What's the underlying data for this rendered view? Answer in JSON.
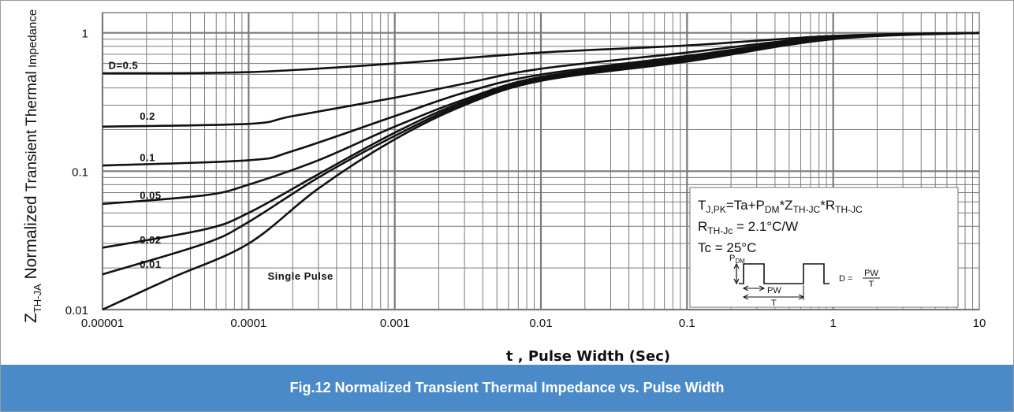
{
  "chart_data": {
    "type": "line",
    "title": "Fig.12 Normalized Transient Thermal Impedance vs. Pulse Width",
    "xlabel": "t , Pulse Width (Sec)",
    "ylabel": {
      "symbol": "Z",
      "subscript": "TH-JA",
      "main": "Normalized",
      "rest": "Transient Thermal",
      "small": "Impedance"
    },
    "x_scale": "log",
    "y_scale": "log",
    "xlim": [
      1e-05,
      10
    ],
    "ylim": [
      0.01,
      1.4
    ],
    "x_ticks": [
      {
        "v": 1e-05,
        "label": "0.00001"
      },
      {
        "v": 0.0001,
        "label": "0.0001"
      },
      {
        "v": 0.001,
        "label": "0.001"
      },
      {
        "v": 0.01,
        "label": "0.01"
      },
      {
        "v": 0.1,
        "label": "0.1"
      },
      {
        "v": 1,
        "label": "1"
      },
      {
        "v": 10,
        "label": "10"
      }
    ],
    "y_ticks": [
      {
        "v": 0.01,
        "label": "0.01"
      },
      {
        "v": 0.1,
        "label": "0.1"
      },
      {
        "v": 1,
        "label": "1"
      }
    ],
    "grid": true,
    "series": [
      {
        "name": "D=0.5",
        "x": [
          1e-05,
          0.0001,
          0.001,
          0.01,
          0.1,
          1,
          10
        ],
        "y": [
          0.51,
          0.52,
          0.6,
          0.72,
          0.81,
          0.95,
          1.0
        ]
      },
      {
        "name": "0.2",
        "x": [
          1e-05,
          0.0001,
          0.0002,
          0.001,
          0.003,
          0.01,
          0.1,
          1,
          10
        ],
        "y": [
          0.21,
          0.22,
          0.25,
          0.34,
          0.43,
          0.55,
          0.72,
          0.94,
          1.0
        ]
      },
      {
        "name": "0.1",
        "x": [
          1e-05,
          0.0001,
          0.0002,
          0.001,
          0.003,
          0.01,
          0.1,
          1,
          10
        ],
        "y": [
          0.11,
          0.12,
          0.14,
          0.25,
          0.37,
          0.5,
          0.68,
          0.93,
          1.0
        ]
      },
      {
        "name": "0.05",
        "x": [
          1e-05,
          5e-05,
          0.0001,
          0.0003,
          0.001,
          0.003,
          0.01,
          0.1,
          1,
          10
        ],
        "y": [
          0.058,
          0.067,
          0.08,
          0.12,
          0.21,
          0.33,
          0.48,
          0.66,
          0.92,
          1.0
        ]
      },
      {
        "name": "0.02",
        "x": [
          1e-05,
          5e-05,
          0.0001,
          0.0003,
          0.001,
          0.003,
          0.01,
          0.1,
          1,
          10
        ],
        "y": [
          0.028,
          0.038,
          0.05,
          0.095,
          0.19,
          0.32,
          0.47,
          0.64,
          0.92,
          1.0
        ]
      },
      {
        "name": "0.01",
        "x": [
          1e-05,
          5e-05,
          0.0001,
          0.0003,
          0.001,
          0.003,
          0.01,
          0.1,
          1,
          10
        ],
        "y": [
          0.018,
          0.03,
          0.043,
          0.09,
          0.18,
          0.31,
          0.46,
          0.63,
          0.91,
          1.0
        ]
      },
      {
        "name": "Single Pulse",
        "x": [
          1e-05,
          3e-05,
          0.0001,
          0.0003,
          0.001,
          0.003,
          0.01,
          0.1,
          1,
          10
        ],
        "y": [
          0.01,
          0.017,
          0.03,
          0.075,
          0.17,
          0.3,
          0.45,
          0.62,
          0.9,
          1.0
        ]
      }
    ],
    "series_labels": [
      {
        "text": "D=0.5",
        "x": 1.1e-05,
        "y": 0.55
      },
      {
        "text": "0.2",
        "x": 1.8e-05,
        "y": 0.235
      },
      {
        "text": "0.1",
        "x": 1.8e-05,
        "y": 0.118
      },
      {
        "text": "0.05",
        "x": 1.8e-05,
        "y": 0.063
      },
      {
        "text": "0.02",
        "x": 1.8e-05,
        "y": 0.03
      },
      {
        "text": "0.01",
        "x": 1.8e-05,
        "y": 0.02
      },
      {
        "text": "Single Pulse",
        "x": 0.000135,
        "y": 0.0165
      }
    ],
    "annotation": {
      "line1": {
        "a": "T",
        "a_sub": "J,PK",
        "b": "=Ta+P",
        "b_sub": "DM",
        "c": "*Z",
        "c_sub": "TH-JC",
        "d": "*R",
        "d_sub": "TH-JC"
      },
      "line2": {
        "a": "R",
        "a_sub": "TH-Jc",
        "b": " = 2.1°C/W"
      },
      "line3": "Tc = 25°C",
      "pulse": {
        "pdm": "P",
        "pdm_sub": "DM",
        "pw": "PW",
        "t": "T",
        "d_eq": "D =",
        "frac_num": "PW",
        "frac_den": "T"
      }
    }
  }
}
